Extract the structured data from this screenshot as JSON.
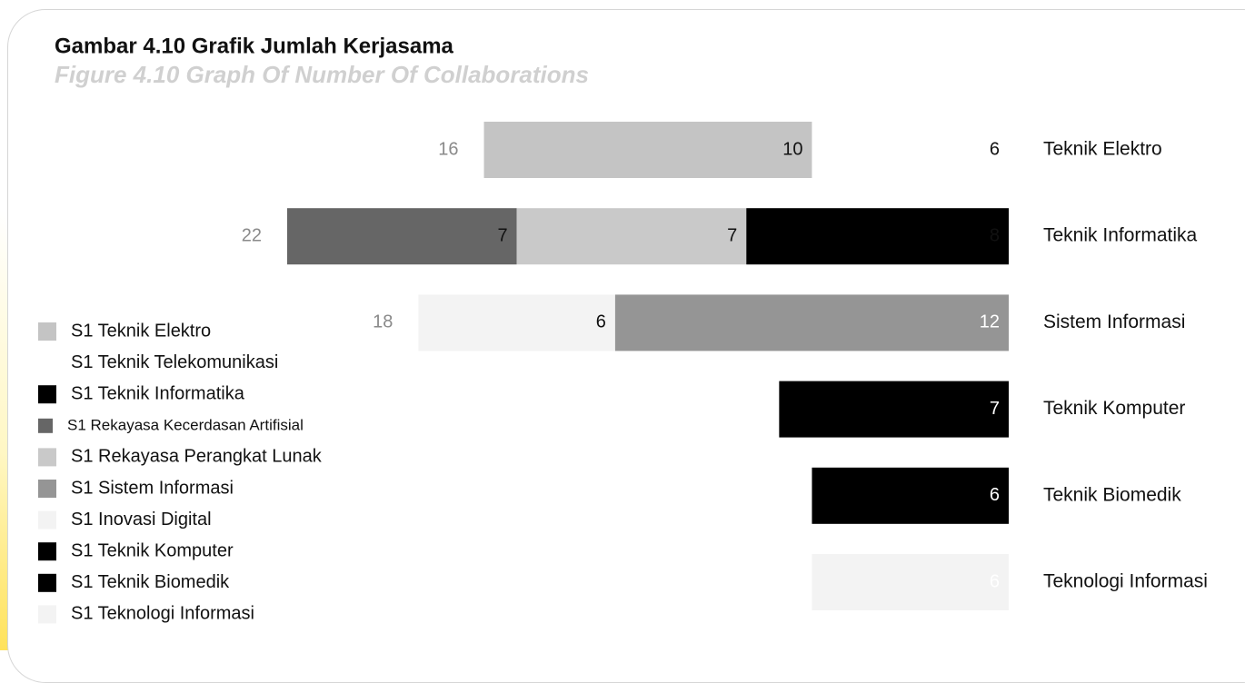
{
  "chart_data": {
    "type": "stacked-bar-horizontal",
    "title": "Gambar 4.10 Grafik Jumlah Kerjasama",
    "subtitle": "Figure 4.10 Graph Of Number Of Collaborations",
    "categories": [
      "Teknik Elektro",
      "Teknik Informatika",
      "Sistem Informasi",
      "Teknik Komputer",
      "Teknik Biomedik",
      "Teknologi Informasi"
    ],
    "totals": [
      16,
      22,
      18,
      null,
      null,
      null
    ],
    "series": [
      {
        "name": "S1 Teknik Elektro",
        "color": "#c4c4c4",
        "values": [
          10,
          null,
          null,
          null,
          null,
          null
        ]
      },
      {
        "name": "S1 Teknik Telekomunikasi",
        "color": "#ffffff",
        "values": [
          6,
          null,
          null,
          null,
          null,
          null
        ]
      },
      {
        "name": "S1 Teknik Informatika",
        "color": "#000000",
        "values": [
          null,
          8,
          null,
          null,
          null,
          null
        ]
      },
      {
        "name": "S1 Rekayasa Kecerdasan Artifisial",
        "color": "#666666",
        "values": [
          null,
          7,
          null,
          null,
          null,
          null
        ]
      },
      {
        "name": "S1 Rekayasa Perangkat Lunak",
        "color": "#c9c9c9",
        "values": [
          null,
          7,
          null,
          null,
          null,
          null
        ]
      },
      {
        "name": "S1 Sistem Informasi",
        "color": "#959595",
        "values": [
          null,
          null,
          12,
          null,
          null,
          null
        ]
      },
      {
        "name": "S1 Inovasi Digital",
        "color": "#f3f3f3",
        "values": [
          null,
          null,
          6,
          null,
          null,
          null
        ]
      },
      {
        "name": "S1 Teknik Komputer",
        "color": "#000000",
        "values": [
          null,
          null,
          null,
          7,
          null,
          null
        ]
      },
      {
        "name": "S1 Teknik Biomedik",
        "color": "#000000",
        "values": [
          null,
          null,
          null,
          null,
          6,
          null
        ]
      },
      {
        "name": "S1 Teknologi Informasi",
        "color": "#f3f3f3",
        "values": [
          null,
          null,
          null,
          null,
          null,
          6
        ]
      }
    ],
    "xlim": [
      0,
      22
    ]
  }
}
